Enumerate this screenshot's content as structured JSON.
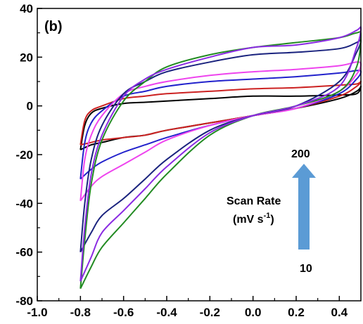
{
  "chart_data": {
    "type": "line",
    "title": "",
    "panel_label": "(b)",
    "xlabel": "",
    "ylabel": "",
    "xlim": [
      -1.0,
      0.5
    ],
    "ylim": [
      -80,
      40
    ],
    "x_ticks": [
      -1.0,
      -0.8,
      -0.6,
      -0.4,
      -0.2,
      0.0,
      0.2,
      0.4
    ],
    "x_tick_labels": [
      "-1.0",
      "-0.8",
      "-0.6",
      "-0.4",
      "-0.2",
      "0.0",
      "0.2",
      "0.4"
    ],
    "y_ticks": [
      -80,
      -60,
      -40,
      -20,
      0,
      20,
      40
    ],
    "y_tick_labels": [
      "-80",
      "-60",
      "-40",
      "-20",
      "0",
      "20",
      "40"
    ],
    "grid": false,
    "annotation": {
      "label_line1": "Scan Rate",
      "label_unit_prefix": "(mV s",
      "label_unit_sup": "-1",
      "label_unit_suffix": ")",
      "arrow_top_value": "200",
      "arrow_bottom_value": "10",
      "arrow_color": "#5b9bd5"
    },
    "series": [
      {
        "color": "#000000",
        "x": [
          -0.8,
          -0.78,
          -0.75,
          -0.7,
          -0.6,
          -0.5,
          -0.4,
          -0.2,
          0.0,
          0.2,
          0.4,
          0.48,
          0.5,
          0.48,
          0.4,
          0.2,
          0.0,
          -0.2,
          -0.4,
          -0.5,
          -0.6,
          -0.7,
          -0.75,
          -0.8
        ],
        "y": [
          -18,
          -8,
          -3,
          -1,
          1,
          1.5,
          2,
          3,
          4,
          4,
          4.5,
          5,
          8,
          6,
          3,
          -1,
          -4,
          -7,
          -10,
          -12,
          -13,
          -15,
          -16,
          -18
        ]
      },
      {
        "color": "#cc2222",
        "x": [
          -0.8,
          -0.78,
          -0.75,
          -0.7,
          -0.6,
          -0.5,
          -0.4,
          -0.2,
          0.0,
          0.2,
          0.4,
          0.48,
          0.5,
          0.48,
          0.4,
          0.2,
          0.0,
          -0.2,
          -0.4,
          -0.5,
          -0.6,
          -0.7,
          -0.75,
          -0.8
        ],
        "y": [
          -16,
          -6,
          -2,
          0,
          3,
          4,
          5,
          6,
          7,
          7.5,
          8.5,
          9,
          10,
          8,
          4,
          -1,
          -4,
          -7,
          -10,
          -12,
          -13,
          -14,
          -15,
          -16
        ]
      },
      {
        "color": "#2222cc",
        "x": [
          -0.8,
          -0.78,
          -0.75,
          -0.7,
          -0.6,
          -0.5,
          -0.4,
          -0.2,
          0.0,
          0.2,
          0.4,
          0.48,
          0.5,
          0.48,
          0.4,
          0.2,
          0.0,
          -0.2,
          -0.4,
          -0.5,
          -0.6,
          -0.7,
          -0.75,
          -0.8
        ],
        "y": [
          -30,
          -15,
          -7,
          -2,
          4,
          6,
          8,
          10,
          11,
          12,
          13.5,
          14.5,
          14,
          11,
          5,
          -1,
          -4,
          -8,
          -13,
          -16,
          -19,
          -23,
          -26,
          -30
        ]
      },
      {
        "color": "#ee44ee",
        "x": [
          -0.8,
          -0.78,
          -0.75,
          -0.7,
          -0.6,
          -0.5,
          -0.4,
          -0.2,
          0.0,
          0.2,
          0.4,
          0.48,
          0.5,
          0.48,
          0.4,
          0.2,
          0.0,
          -0.2,
          -0.4,
          -0.5,
          -0.6,
          -0.7,
          -0.75,
          -0.8
        ],
        "y": [
          -39,
          -22,
          -12,
          -4,
          5,
          8,
          10,
          12.5,
          14,
          15,
          16.5,
          18,
          17,
          13,
          6,
          -1,
          -4,
          -8,
          -14,
          -19,
          -24,
          -29,
          -33,
          -39
        ]
      },
      {
        "color": "#1a237e",
        "x": [
          -0.8,
          -0.78,
          -0.75,
          -0.7,
          -0.6,
          -0.5,
          -0.4,
          -0.2,
          0.0,
          0.2,
          0.4,
          0.48,
          0.5,
          0.48,
          0.4,
          0.2,
          0.0,
          -0.2,
          -0.4,
          -0.5,
          -0.6,
          -0.7,
          -0.75,
          -0.8
        ],
        "y": [
          -60,
          -40,
          -22,
          -8,
          5,
          10,
          14,
          18,
          21,
          22,
          23.5,
          26,
          27,
          22,
          10,
          0,
          -4,
          -10,
          -22,
          -30,
          -38,
          -45,
          -52,
          -60
        ]
      },
      {
        "color": "#228b22",
        "x": [
          -0.8,
          -0.78,
          -0.75,
          -0.7,
          -0.6,
          -0.5,
          -0.4,
          -0.2,
          0.0,
          0.2,
          0.4,
          0.48,
          0.5,
          0.48,
          0.4,
          0.2,
          0.0,
          -0.2,
          -0.4,
          -0.5,
          -0.6,
          -0.7,
          -0.75,
          -0.8
        ],
        "y": [
          -75,
          -55,
          -32,
          -14,
          2,
          10,
          16,
          21,
          24,
          26,
          28,
          30,
          29,
          16,
          6,
          0,
          -4,
          -12,
          -28,
          -38,
          -48,
          -58,
          -66,
          -75
        ]
      },
      {
        "color": "#8a2be2",
        "x": [
          -0.8,
          -0.78,
          -0.75,
          -0.7,
          -0.6,
          -0.5,
          -0.4,
          -0.2,
          0.0,
          0.2,
          0.4,
          0.48,
          0.5,
          0.48,
          0.4,
          0.2,
          0.0,
          -0.2,
          -0.4,
          -0.5,
          -0.6,
          -0.7,
          -0.75,
          -0.8
        ],
        "y": [
          -72,
          -50,
          -28,
          -12,
          4,
          11,
          15,
          20,
          24,
          25,
          28,
          31,
          32,
          24,
          8,
          0,
          -4,
          -11,
          -25,
          -34,
          -43,
          -52,
          -62,
          -72
        ]
      }
    ]
  }
}
